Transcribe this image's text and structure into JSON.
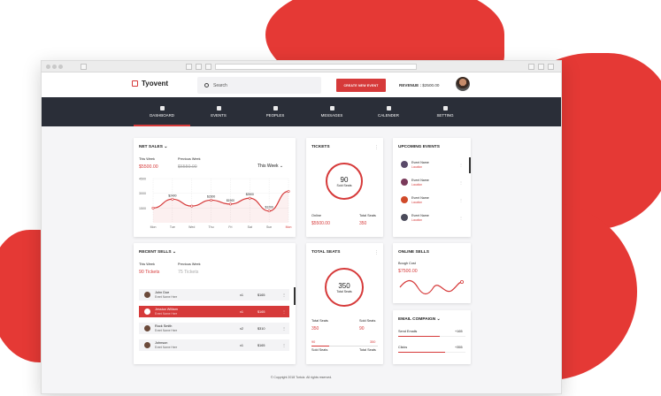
{
  "brand": {
    "name": "Tyovent"
  },
  "header": {
    "search_placeholder": "Search",
    "create_label": "CREATE NEW EVENT",
    "revenue_label": "REVENUE :",
    "revenue_value": "$2500.00"
  },
  "nav": [
    {
      "label": "DASHBOARD",
      "icon": "dashboard-icon"
    },
    {
      "label": "EVENTS",
      "icon": "events-icon"
    },
    {
      "label": "PEOPLES",
      "icon": "people-icon"
    },
    {
      "label": "MESSAGES",
      "icon": "messages-icon"
    },
    {
      "label": "CALENDER",
      "icon": "calendar-icon"
    },
    {
      "label": "SETTING",
      "icon": "gear-icon"
    }
  ],
  "net_sales": {
    "title": "NET SALES",
    "this_week_label": "This Week",
    "this_week_value": "$5500.00",
    "prev_week_label": "Previous Week",
    "prev_week_value": "$6550.00",
    "filter": "This Week",
    "chart_data": {
      "type": "line",
      "categories": [
        "Mon",
        "Tue",
        "Wed",
        "Thu",
        "Fri",
        "Sat",
        "Sun",
        "Mon"
      ],
      "series": [
        {
          "values": [
            1500,
            2400,
            1700,
            2300,
            1900,
            2500,
            1200,
            3200
          ]
        }
      ],
      "point_labels": [
        "",
        "$2400",
        "",
        "$2300",
        "$1900",
        "$2500",
        "$1200",
        ""
      ],
      "ylabels": [
        "1500",
        "3000",
        "4500"
      ],
      "ylim": [
        0,
        4500
      ]
    }
  },
  "tickets": {
    "title": "TICKETS",
    "count": "90",
    "sub": "Sold Seats",
    "online_label": "Online",
    "online_value": "$5500.00",
    "total_label": "Total Seats",
    "total_value": "350"
  },
  "upcoming": {
    "title": "UPCOMING EVENTS",
    "items": [
      {
        "name": "Event Name",
        "loc": "Location",
        "color": "#5a4a6a"
      },
      {
        "name": "Event Name",
        "loc": "Location",
        "color": "#7a3a5a"
      },
      {
        "name": "Event Name",
        "loc": "Location",
        "color": "#d04a2a"
      },
      {
        "name": "Event Name",
        "loc": "Location",
        "color": "#4a4a5a"
      }
    ]
  },
  "recent": {
    "title": "RECENT SELLS",
    "this_week_label": "This Week",
    "this_week_value": "90 Tickets",
    "prev_week_label": "Previous Week",
    "prev_week_value": "75 Tickets",
    "rows": [
      {
        "name": "John Doe",
        "sub": "Event Name Here",
        "qty": "x1",
        "price": "$165",
        "selected": false
      },
      {
        "name": "Jessica William",
        "sub": "Event Name Here",
        "qty": "x1",
        "price": "$165",
        "selected": true
      },
      {
        "name": "Rock Smith",
        "sub": "Event Name Here",
        "qty": "x2",
        "price": "$310",
        "selected": false
      },
      {
        "name": "Johnson",
        "sub": "Event Name Here",
        "qty": "x1",
        "price": "$165",
        "selected": false
      }
    ]
  },
  "total_seats": {
    "title": "TOTAL SEATS",
    "count": "350",
    "sub": "Total Seats",
    "l1": "Total Seats",
    "v1": "350",
    "l2": "Sold Seats",
    "v2": "90",
    "b1": "90",
    "b2": "350",
    "b3": "Sold Seats",
    "b4": "Total Seats"
  },
  "online": {
    "title": "ONLINE SELLS",
    "label": "Bough Cost",
    "value": "$7500.00"
  },
  "email": {
    "title": "EMAIL COMPAIGN",
    "send_label": "Send Emails",
    "send_value": "+165",
    "clicks_label": "Clicks",
    "clicks_value": "+355"
  },
  "footer": "© Copyright 2018 Tortoiz. All rights reserved."
}
